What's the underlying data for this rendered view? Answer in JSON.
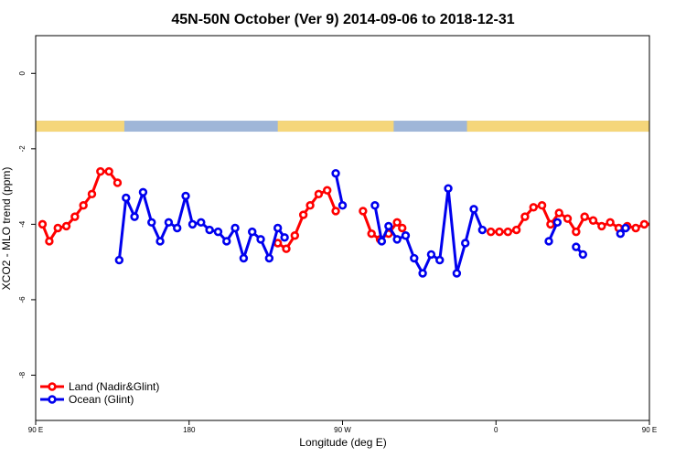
{
  "chart_data": {
    "type": "line",
    "title": "45N-50N October (Ver 9)   2014-09-06 to 2018-12-31",
    "xlabel": "Longitude (deg E)",
    "ylabel": "XCO2 - MLO trend (ppm)",
    "xlim": [
      90,
      450
    ],
    "ylim": [
      -9.2,
      1.0
    ],
    "x_ticks": [
      {
        "value": 90,
        "label": "90 E"
      },
      {
        "value": 180,
        "label": "180"
      },
      {
        "value": 270,
        "label": "90 W"
      },
      {
        "value": 360,
        "label": "0"
      },
      {
        "value": 450,
        "label": "90 E"
      },
      {
        "value": 540,
        "label": "180"
      }
    ],
    "y_ticks": [
      {
        "value": 0,
        "label": "0"
      },
      {
        "value": -2,
        "label": "-2"
      },
      {
        "value": -4,
        "label": "-4"
      },
      {
        "value": -6,
        "label": "-6"
      },
      {
        "value": -8,
        "label": "-8"
      }
    ],
    "land_mask": {
      "y": -1.4,
      "colors": {
        "land": "#f5d67a",
        "ocean": "#9fb6d8"
      },
      "land_segments": [
        [
          90,
          142
        ],
        [
          232,
          300
        ],
        [
          343,
          472
        ]
      ]
    },
    "series": [
      {
        "name": "Land (Nadir&Glint)",
        "color": "#ff0000",
        "segments": [
          [
            {
              "x": 94,
              "y": -4.0
            },
            {
              "x": 98,
              "y": -4.45
            },
            {
              "x": 103,
              "y": -4.1
            },
            {
              "x": 108,
              "y": -4.05
            },
            {
              "x": 113,
              "y": -3.8
            },
            {
              "x": 118,
              "y": -3.5
            },
            {
              "x": 123,
              "y": -3.2
            },
            {
              "x": 128,
              "y": -2.6
            },
            {
              "x": 133,
              "y": -2.6
            },
            {
              "x": 138,
              "y": -2.9
            }
          ],
          [
            {
              "x": 232,
              "y": -4.5
            },
            {
              "x": 237,
              "y": -4.65
            },
            {
              "x": 242,
              "y": -4.3
            },
            {
              "x": 247,
              "y": -3.75
            },
            {
              "x": 251,
              "y": -3.5
            },
            {
              "x": 256,
              "y": -3.2
            },
            {
              "x": 261,
              "y": -3.1
            },
            {
              "x": 266,
              "y": -3.65
            }
          ],
          [
            {
              "x": 282,
              "y": -3.65
            },
            {
              "x": 287,
              "y": -4.25
            },
            {
              "x": 292,
              "y": -4.4
            },
            {
              "x": 297,
              "y": -4.25
            },
            {
              "x": 302,
              "y": -3.95
            },
            {
              "x": 305,
              "y": -4.1
            }
          ],
          [
            {
              "x": 357,
              "y": -4.2
            },
            {
              "x": 362,
              "y": -4.2
            },
            {
              "x": 367,
              "y": -4.2
            },
            {
              "x": 372,
              "y": -4.15
            },
            {
              "x": 377,
              "y": -3.8
            },
            {
              "x": 382,
              "y": -3.55
            },
            {
              "x": 387,
              "y": -3.5
            },
            {
              "x": 392,
              "y": -4.0
            },
            {
              "x": 397,
              "y": -3.7
            },
            {
              "x": 402,
              "y": -3.85
            },
            {
              "x": 407,
              "y": -4.2
            },
            {
              "x": 412,
              "y": -3.8
            },
            {
              "x": 417,
              "y": -3.9
            },
            {
              "x": 422,
              "y": -4.05
            },
            {
              "x": 427,
              "y": -3.95
            },
            {
              "x": 432,
              "y": -4.1
            },
            {
              "x": 437,
              "y": -4.05
            },
            {
              "x": 442,
              "y": -4.1
            },
            {
              "x": 447,
              "y": -4.0
            },
            {
              "x": 452,
              "y": -4.0
            },
            {
              "x": 457,
              "y": -4.5
            },
            {
              "x": 462,
              "y": -4.1
            },
            {
              "x": 467,
              "y": -4.05
            },
            {
              "x": 472,
              "y": -3.8
            },
            {
              "x": 477,
              "y": -3.5
            },
            {
              "x": 482,
              "y": -3.2
            },
            {
              "x": 487,
              "y": -2.6
            },
            {
              "x": 492,
              "y": -2.6
            },
            {
              "x": 497,
              "y": -2.9
            }
          ]
        ]
      },
      {
        "name": "Ocean (Glint)",
        "color": "#0000ee",
        "segments": [
          [
            {
              "x": 139,
              "y": -4.95
            },
            {
              "x": 143,
              "y": -3.3
            },
            {
              "x": 148,
              "y": -3.8
            },
            {
              "x": 153,
              "y": -3.15
            },
            {
              "x": 158,
              "y": -3.95
            },
            {
              "x": 163,
              "y": -4.45
            },
            {
              "x": 168,
              "y": -3.95
            },
            {
              "x": 173,
              "y": -4.1
            },
            {
              "x": 178,
              "y": -3.25
            },
            {
              "x": 182,
              "y": -4.0
            },
            {
              "x": 187,
              "y": -3.95
            },
            {
              "x": 192,
              "y": -4.15
            },
            {
              "x": 197,
              "y": -4.2
            },
            {
              "x": 202,
              "y": -4.45
            },
            {
              "x": 207,
              "y": -4.1
            },
            {
              "x": 212,
              "y": -4.9
            },
            {
              "x": 217,
              "y": -4.2
            },
            {
              "x": 222,
              "y": -4.4
            },
            {
              "x": 227,
              "y": -4.9
            },
            {
              "x": 232,
              "y": -4.1
            },
            {
              "x": 236,
              "y": -4.35
            }
          ],
          [
            {
              "x": 266,
              "y": -2.65
            },
            {
              "x": 270,
              "y": -3.5
            }
          ],
          [
            {
              "x": 289,
              "y": -3.5
            },
            {
              "x": 293,
              "y": -4.45
            },
            {
              "x": 297,
              "y": -4.05
            },
            {
              "x": 302,
              "y": -4.4
            },
            {
              "x": 307,
              "y": -4.3
            },
            {
              "x": 312,
              "y": -4.9
            },
            {
              "x": 317,
              "y": -5.3
            },
            {
              "x": 322,
              "y": -4.8
            },
            {
              "x": 327,
              "y": -4.95
            },
            {
              "x": 332,
              "y": -3.05
            },
            {
              "x": 337,
              "y": -5.3
            },
            {
              "x": 342,
              "y": -4.5
            },
            {
              "x": 347,
              "y": -3.6
            },
            {
              "x": 352,
              "y": -4.15
            }
          ],
          [
            {
              "x": 391,
              "y": -4.45
            },
            {
              "x": 396,
              "y": -3.95
            }
          ],
          [
            {
              "x": 407,
              "y": -4.6
            },
            {
              "x": 411,
              "y": -4.8
            }
          ],
          [
            {
              "x": 433,
              "y": -4.25
            },
            {
              "x": 436,
              "y": -4.1
            }
          ],
          [
            {
              "x": 498,
              "y": -4.95
            },
            {
              "x": 503,
              "y": -3.3
            },
            {
              "x": 508,
              "y": -3.8
            },
            {
              "x": 513,
              "y": -3.15
            },
            {
              "x": 518,
              "y": -3.95
            },
            {
              "x": 523,
              "y": -4.45
            },
            {
              "x": 528,
              "y": -3.95
            },
            {
              "x": 533,
              "y": -4.1
            },
            {
              "x": 538,
              "y": -3.25
            }
          ]
        ]
      }
    ],
    "legend_position": "bottom-left",
    "grid": false
  }
}
